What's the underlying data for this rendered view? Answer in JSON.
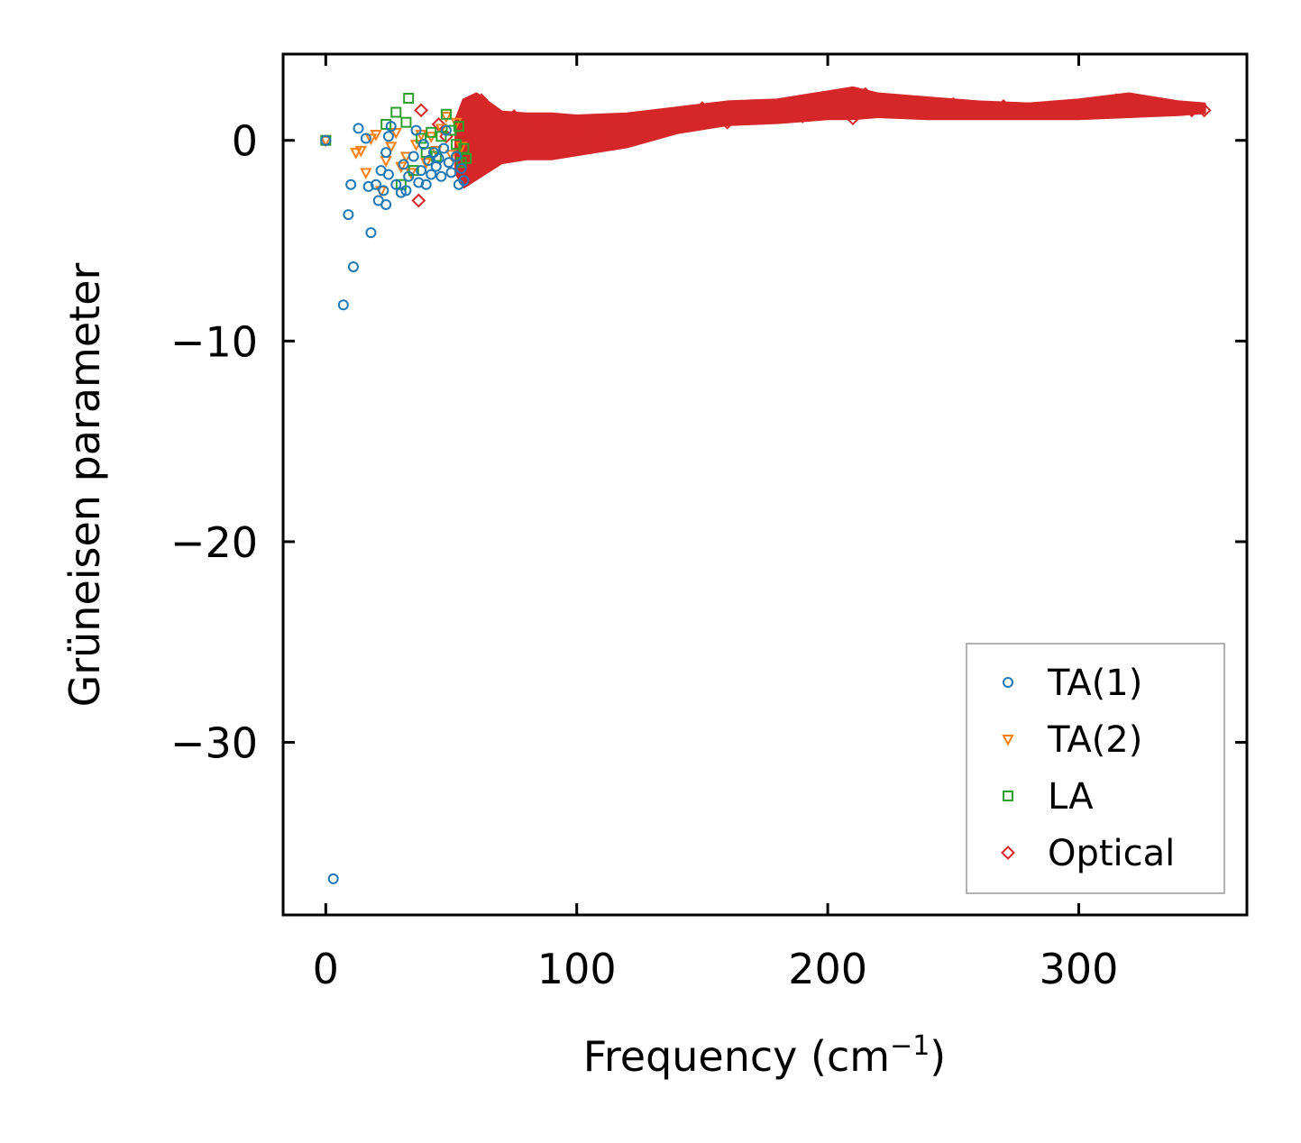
{
  "chart_data": {
    "type": "scatter",
    "title": "",
    "xlabel": "Frequency (cm",
    "xlabel_sup": "−1",
    "xlabel_close": ")",
    "ylabel": "Grüneisen parameter",
    "xlim": [
      -17,
      367
    ],
    "ylim": [
      -38.6,
      4.3
    ],
    "xticks": [
      0,
      100,
      200,
      300
    ],
    "xtick_labels": [
      "0",
      "100",
      "200",
      "300"
    ],
    "yticks": [
      0,
      -10,
      -20,
      -30
    ],
    "ytick_labels": [
      "0",
      "−10",
      "−20",
      "−30"
    ],
    "legend_position": "lower-right",
    "series": [
      {
        "name": "TA(1)",
        "marker": "circle",
        "color": "#1f77b4",
        "points": [
          [
            0,
            0
          ],
          [
            3,
            -36.8
          ],
          [
            7,
            -8.2
          ],
          [
            9,
            -3.7
          ],
          [
            10,
            -2.2
          ],
          [
            11,
            -6.3
          ],
          [
            13,
            0.6
          ],
          [
            16,
            0.1
          ],
          [
            17,
            -2.3
          ],
          [
            18,
            -4.6
          ],
          [
            20,
            -2.2
          ],
          [
            21,
            -3
          ],
          [
            22,
            -1.5
          ],
          [
            23,
            -2.5
          ],
          [
            24,
            -0.6
          ],
          [
            24,
            -3.2
          ],
          [
            25,
            -1.7
          ],
          [
            25,
            0.2
          ],
          [
            26,
            0.7
          ],
          [
            28,
            -2.2
          ],
          [
            30,
            -2.6
          ],
          [
            31,
            -1.2
          ],
          [
            32,
            -2.5
          ],
          [
            33,
            -1.8
          ],
          [
            35,
            -0.8
          ],
          [
            36,
            0.5
          ],
          [
            37,
            -2.1
          ],
          [
            38,
            -1.5
          ],
          [
            39,
            -0.2
          ],
          [
            40,
            -2.2
          ],
          [
            41,
            -1
          ],
          [
            42,
            -1.7
          ],
          [
            43,
            -0.6
          ],
          [
            44,
            -1.3
          ],
          [
            45,
            -0.9
          ],
          [
            46,
            -1.8
          ],
          [
            47,
            -0.4
          ],
          [
            48,
            0.5
          ],
          [
            49,
            -1.1
          ],
          [
            50,
            -1.6
          ],
          [
            52,
            -0.8
          ],
          [
            53,
            -2.2
          ],
          [
            54,
            -1.4
          ],
          [
            55,
            -2
          ]
        ]
      },
      {
        "name": "TA(2)",
        "marker": "triangle-down",
        "color": "#ff7f0e",
        "points": [
          [
            0,
            0
          ],
          [
            12,
            -0.6
          ],
          [
            14,
            -0.5
          ],
          [
            16,
            -1.6
          ],
          [
            18,
            0.1
          ],
          [
            20,
            0.3
          ],
          [
            22,
            -2.5
          ],
          [
            24,
            -1
          ],
          [
            26,
            -0.3
          ],
          [
            28,
            0.4
          ],
          [
            30,
            -1.3
          ],
          [
            32,
            -0.8
          ],
          [
            34,
            -1.6
          ],
          [
            36,
            -0.2
          ],
          [
            38,
            0.3
          ],
          [
            40,
            -1.1
          ],
          [
            42,
            0.2
          ],
          [
            44,
            -0.5
          ],
          [
            46,
            0.6
          ],
          [
            48,
            1.2
          ],
          [
            50,
            -0.7
          ],
          [
            52,
            0.9
          ],
          [
            54,
            -0.3
          ]
        ]
      },
      {
        "name": "LA",
        "marker": "square",
        "color": "#2ca02c",
        "points": [
          [
            0,
            0
          ],
          [
            24,
            0.8
          ],
          [
            28,
            1.4
          ],
          [
            30,
            -2.2
          ],
          [
            32,
            0.9
          ],
          [
            33,
            2.1
          ],
          [
            35,
            -1.5
          ],
          [
            38,
            0.1
          ],
          [
            40,
            -0.6
          ],
          [
            42,
            0.4
          ],
          [
            44,
            -0.8
          ],
          [
            46,
            0.2
          ],
          [
            48,
            1.3
          ],
          [
            50,
            0.5
          ],
          [
            52,
            -0.2
          ],
          [
            53,
            0.7
          ],
          [
            54,
            -1.1
          ],
          [
            55,
            -0.4
          ],
          [
            56,
            -0.9
          ]
        ]
      },
      {
        "name": "Optical",
        "marker": "diamond",
        "color": "#d62728",
        "points": [
          [
            37,
            -3
          ],
          [
            38,
            1.5
          ],
          [
            45,
            0.8
          ],
          [
            48,
            0.2
          ],
          [
            55,
            -1.5
          ],
          [
            58,
            1.6
          ],
          [
            62,
            2
          ],
          [
            65,
            -1
          ],
          [
            70,
            0.5
          ],
          [
            75,
            1.2
          ],
          [
            80,
            -0.5
          ],
          [
            85,
            1
          ],
          [
            90,
            -0.3
          ],
          [
            95,
            0.4
          ],
          [
            100,
            0.7
          ],
          [
            110,
            0.1
          ],
          [
            120,
            0.6
          ],
          [
            130,
            0.4
          ],
          [
            140,
            1.1
          ],
          [
            150,
            1.6
          ],
          [
            160,
            0.9
          ],
          [
            170,
            1.7
          ],
          [
            180,
            1.4
          ],
          [
            190,
            1.2
          ],
          [
            200,
            1.6
          ],
          [
            205,
            2
          ],
          [
            210,
            1.1
          ],
          [
            215,
            2.3
          ],
          [
            220,
            1.7
          ],
          [
            230,
            1.9
          ],
          [
            240,
            1.5
          ],
          [
            250,
            1.8
          ],
          [
            260,
            1.6
          ],
          [
            270,
            1.7
          ],
          [
            280,
            1.5
          ],
          [
            290,
            1.4
          ],
          [
            300,
            1.6
          ],
          [
            310,
            1.4
          ],
          [
            315,
            2
          ],
          [
            320,
            1.8
          ],
          [
            330,
            1.7
          ],
          [
            340,
            1.6
          ],
          [
            345,
            1.5
          ],
          [
            350,
            1.5
          ]
        ]
      }
    ],
    "optical_band": {
      "x": [
        52,
        55,
        60,
        70,
        80,
        90,
        100,
        120,
        140,
        160,
        180,
        200,
        210,
        220,
        240,
        260,
        280,
        300,
        320,
        340,
        350
      ],
      "upper": [
        1.0,
        2.0,
        2.3,
        1.4,
        1.3,
        1.3,
        1.2,
        1.3,
        1.6,
        1.9,
        2.0,
        2.4,
        2.6,
        2.3,
        2.1,
        1.9,
        1.8,
        2.0,
        2.3,
        1.9,
        1.8
      ],
      "lower": [
        -1.6,
        -2.3,
        -1.9,
        -1.1,
        -0.9,
        -0.9,
        -0.7,
        -0.3,
        0.4,
        0.8,
        0.9,
        1.1,
        1.1,
        1.2,
        1.1,
        1.1,
        1.1,
        1.1,
        1.2,
        1.3,
        1.4
      ]
    }
  }
}
